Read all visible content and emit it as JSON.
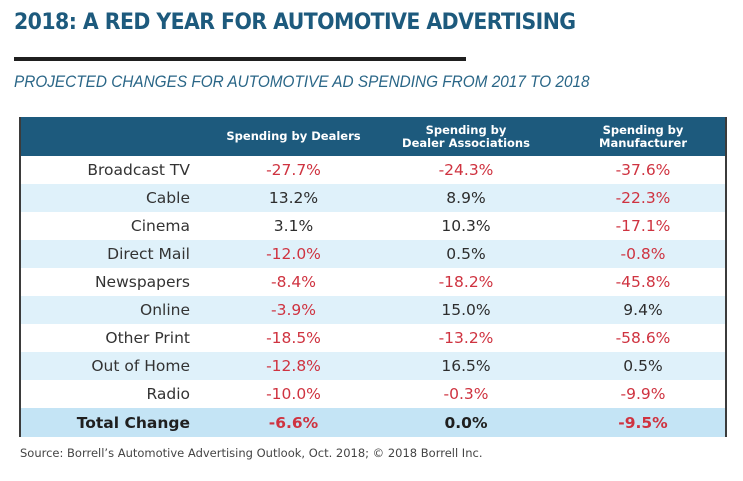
{
  "title": "2018: A RED YEAR FOR AUTOMOTIVE ADVERTISING",
  "subtitle": "PROJECTED CHANGES FOR AUTOMOTIVE AD SPENDING FROM 2017 TO 2018",
  "source": "Source: Borrell’s Automotive Advertising Outlook, Oct. 2018; © 2018 Borrell Inc.",
  "colors": {
    "header_bg": "#1d5a7d",
    "negative": "#cf3340",
    "alt_row": "#dff1fa",
    "total_row": "#c4e4f5"
  },
  "chart_data": {
    "type": "table",
    "title": "2018: A RED YEAR FOR AUTOMOTIVE ADVERTISING",
    "subtitle": "PROJECTED CHANGES FOR AUTOMOTIVE AD SPENDING FROM 2017 TO 2018",
    "columns": [
      {
        "label": "",
        "lines": [
          ""
        ]
      },
      {
        "label": "Spending by Dealers",
        "lines": [
          "Spending by Dealers"
        ]
      },
      {
        "label": "Spending by Dealer Associations",
        "lines": [
          "Spending by",
          "Dealer Associations"
        ]
      },
      {
        "label": "Spending by Manufacturer",
        "lines": [
          "Spending by",
          "Manufacturer"
        ]
      }
    ],
    "rows": [
      {
        "label": "Broadcast TV",
        "values": [
          "-27.7%",
          "-24.3%",
          "-37.6%"
        ]
      },
      {
        "label": "Cable",
        "values": [
          "13.2%",
          "8.9%",
          "-22.3%"
        ]
      },
      {
        "label": "Cinema",
        "values": [
          "3.1%",
          "10.3%",
          "-17.1%"
        ]
      },
      {
        "label": "Direct Mail",
        "values": [
          "-12.0%",
          "0.5%",
          "-0.8%"
        ]
      },
      {
        "label": "Newspapers",
        "values": [
          "-8.4%",
          "-18.2%",
          "-45.8%"
        ]
      },
      {
        "label": "Online",
        "values": [
          "-3.9%",
          "15.0%",
          "9.4%"
        ]
      },
      {
        "label": "Other Print",
        "values": [
          "-18.5%",
          "-13.2%",
          "-58.6%"
        ]
      },
      {
        "label": "Out of Home",
        "values": [
          "-12.8%",
          "16.5%",
          "0.5%"
        ]
      },
      {
        "label": "Radio",
        "values": [
          "-10.0%",
          "-0.3%",
          "-9.9%"
        ]
      }
    ],
    "total": {
      "label": "Total Change",
      "values": [
        "-6.6%",
        "0.0%",
        "-9.5%"
      ]
    },
    "source": "Source: Borrell’s Automotive Advertising Outlook, Oct. 2018; © 2018 Borrell Inc."
  }
}
